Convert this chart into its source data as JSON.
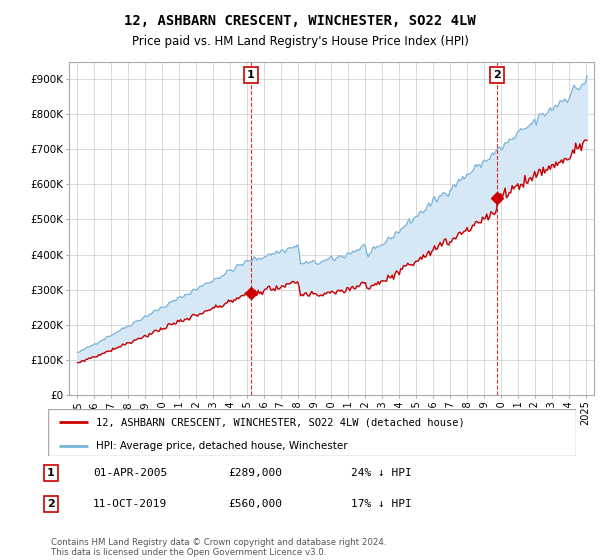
{
  "title": "12, ASHBARN CRESCENT, WINCHESTER, SO22 4LW",
  "subtitle": "Price paid vs. HM Land Registry's House Price Index (HPI)",
  "footnote": "Contains HM Land Registry data © Crown copyright and database right 2024.\nThis data is licensed under the Open Government Licence v3.0.",
  "legend_line1": "12, ASHBARN CRESCENT, WINCHESTER, SO22 4LW (detached house)",
  "legend_line2": "HPI: Average price, detached house, Winchester",
  "table": [
    {
      "num": "1",
      "date": "01-APR-2005",
      "price": "£289,000",
      "pct": "24% ↓ HPI"
    },
    {
      "num": "2",
      "date": "11-OCT-2019",
      "price": "£560,000",
      "pct": "17% ↓ HPI"
    }
  ],
  "marker1_x": 2005.25,
  "marker1_y": 289000,
  "marker2_x": 2019.78,
  "marker2_y": 560000,
  "ylabel_ticks": [
    0,
    100000,
    200000,
    300000,
    400000,
    500000,
    600000,
    700000,
    800000,
    900000
  ],
  "ylabel_labels": [
    "£0",
    "£100K",
    "£200K",
    "£300K",
    "£400K",
    "£500K",
    "£600K",
    "£700K",
    "£800K",
    "£900K"
  ],
  "xlim": [
    1994.5,
    2025.5
  ],
  "ylim": [
    0,
    950000
  ],
  "hpi_color": "#7ab4d8",
  "hpi_fill_color": "#d6e8f5",
  "price_color": "#cc0000",
  "marker_box_color": "#cc0000",
  "background_color": "#ffffff",
  "grid_color": "#cccccc"
}
